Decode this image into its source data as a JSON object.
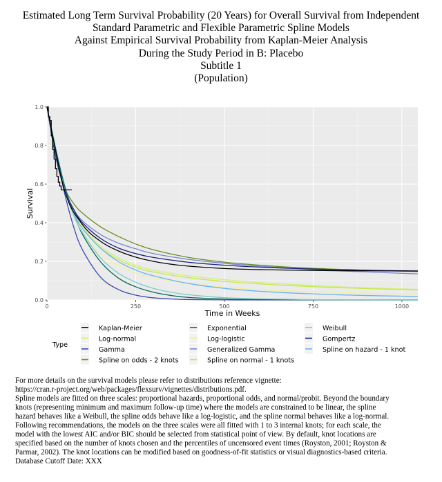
{
  "titles": [
    "Estimated Long Term Survival Probability (20 Years) for Overall Survival from Independent",
    "Standard Parametric and Flexible Parametric Spline Models",
    "Against Empirical Survival Probability from Kaplan-Meier Analysis",
    "During the Study Period in B: Placebo",
    "Subtitle 1",
    "(Population)"
  ],
  "footnotes": [
    "For more details on the survival models please refer to distributions reference vignette:",
    "https://cran.r-project.org/web/packages/flexsurv/vignettes/distributions.pdf.",
    "Spline models are fitted on three scales: proportional hazards, proportional odds, and normal/probit. Beyond the boundary",
    "knots (representing minimum and maximum follow-up time) where the models are constrained to be linear, the spline",
    "hazard behaves like a Weibull, the spline odds behave like a log-logistic, and the spline normal behaves like a log-normal.",
    "Following recommendations, the models on the three scales were all fitted with 1 to 3 internal knots; for each scale, the",
    "model with the lowest AIC and/or BIC should be selected from statistical point of view. By default, knot locations are",
    "specified based on the number of knots chosen and the percentiles of uncensored event times (Royston, 2001; Royston &",
    "Parmar, 2002). The knot locations can be modified based on goodness-of-fit statistics or visual diagnostics-based criteria.",
    "Database Cutoff Date: XXX"
  ],
  "chart_data": {
    "type": "line",
    "xlabel": "Time in Weeks",
    "ylabel": "Survival",
    "xlim": [
      0,
      1045
    ],
    "ylim": [
      0,
      1.0
    ],
    "xticks": [
      0,
      250,
      500,
      750,
      1000
    ],
    "xtick_labels": [
      "0",
      "250",
      "500",
      "750",
      "1000"
    ],
    "yticks": [
      0.0,
      0.2,
      0.4,
      0.6,
      0.8,
      1.0
    ],
    "ytick_labels": [
      "0.0",
      "0.2",
      "0.4",
      "0.6",
      "0.8",
      "1.0"
    ],
    "grid": true,
    "background": "#ebebeb",
    "legend_title": "Type",
    "legend_position": "bottom",
    "kaplan_meier_steps": {
      "x": [
        0,
        4,
        8,
        12,
        16,
        20,
        24,
        28,
        32,
        36,
        40,
        44,
        48,
        55,
        60,
        65,
        70
      ],
      "y": [
        1.0,
        0.95,
        0.93,
        0.85,
        0.78,
        0.73,
        0.68,
        0.64,
        0.61,
        0.59,
        0.57,
        0.57,
        0.57,
        0.57,
        0.57,
        0.57,
        0.57
      ]
    },
    "series": [
      {
        "name": "Kaplan-Meier",
        "color": "#000000",
        "x": [
          0,
          50,
          100,
          150,
          200,
          250,
          300,
          350,
          400,
          500,
          600,
          700,
          800,
          900,
          1045
        ],
        "y": [
          1.0,
          0.565,
          0.39,
          0.305,
          0.255,
          0.222,
          0.2,
          0.185,
          0.175,
          0.163,
          0.157,
          0.154,
          0.152,
          0.151,
          0.15
        ]
      },
      {
        "name": "Log-normal",
        "color": "#d2ef7a",
        "x": [
          0,
          25,
          50,
          75,
          100,
          150,
          200,
          250,
          300,
          400,
          500,
          600,
          700,
          800,
          900,
          1045
        ],
        "y": [
          1.0,
          0.76,
          0.58,
          0.46,
          0.38,
          0.28,
          0.22,
          0.18,
          0.155,
          0.125,
          0.105,
          0.09,
          0.08,
          0.07,
          0.063,
          0.055
        ]
      },
      {
        "name": "Gamma",
        "color": "#3949ab",
        "x": [
          0,
          25,
          50,
          75,
          100,
          150,
          200,
          250,
          300,
          350,
          400,
          500,
          600,
          800,
          1045
        ],
        "y": [
          1.0,
          0.76,
          0.55,
          0.38,
          0.26,
          0.12,
          0.055,
          0.025,
          0.011,
          0.005,
          0.002,
          0.0005,
          0.0001,
          0,
          0
        ]
      },
      {
        "name": "Spline on odds - 2 knots",
        "color": "#6b8e23",
        "x": [
          0,
          25,
          50,
          75,
          100,
          150,
          200,
          250,
          300,
          400,
          500,
          600,
          700,
          800,
          900,
          1045
        ],
        "y": [
          1.0,
          0.74,
          0.58,
          0.5,
          0.45,
          0.38,
          0.33,
          0.29,
          0.26,
          0.22,
          0.196,
          0.18,
          0.168,
          0.16,
          0.154,
          0.147
        ]
      },
      {
        "name": "Exponential",
        "color": "#00695c",
        "x": [
          0,
          25,
          50,
          75,
          100,
          150,
          200,
          250,
          300,
          350,
          400,
          500,
          600,
          700,
          800,
          1045
        ],
        "y": [
          1.0,
          0.78,
          0.59,
          0.45,
          0.34,
          0.2,
          0.115,
          0.068,
          0.04,
          0.023,
          0.013,
          0.005,
          0.002,
          0.001,
          0,
          0
        ]
      },
      {
        "name": "Log-logistic",
        "color": "#f3ef9c",
        "x": [
          0,
          25,
          50,
          75,
          100,
          150,
          200,
          250,
          300,
          400,
          500,
          600,
          700,
          800,
          900,
          1045
        ],
        "y": [
          1.0,
          0.76,
          0.57,
          0.44,
          0.35,
          0.24,
          0.18,
          0.14,
          0.115,
          0.085,
          0.066,
          0.054,
          0.046,
          0.04,
          0.035,
          0.03
        ]
      },
      {
        "name": "Generalized Gamma",
        "color": "#7986cb",
        "x": [
          0,
          25,
          50,
          75,
          100,
          150,
          200,
          250,
          300,
          400,
          500,
          600,
          700,
          800,
          900,
          1045
        ],
        "y": [
          1.0,
          0.74,
          0.57,
          0.47,
          0.41,
          0.34,
          0.295,
          0.265,
          0.24,
          0.21,
          0.19,
          0.175,
          0.163,
          0.153,
          0.145,
          0.135
        ]
      },
      {
        "name": "Spline on normal - 1 knots",
        "color": "#c6e84a",
        "x": [
          0,
          25,
          50,
          75,
          100,
          150,
          200,
          250,
          300,
          400,
          500,
          600,
          700,
          800,
          900,
          1045
        ],
        "y": [
          1.0,
          0.76,
          0.57,
          0.45,
          0.37,
          0.27,
          0.21,
          0.17,
          0.145,
          0.115,
          0.096,
          0.083,
          0.073,
          0.065,
          0.059,
          0.052
        ]
      },
      {
        "name": "Weibull",
        "color": "#80cbc4",
        "x": [
          0,
          25,
          50,
          75,
          100,
          150,
          200,
          250,
          300,
          350,
          400,
          500,
          600,
          700,
          800,
          1045
        ],
        "y": [
          1.0,
          0.76,
          0.57,
          0.44,
          0.35,
          0.22,
          0.14,
          0.092,
          0.06,
          0.04,
          0.027,
          0.012,
          0.006,
          0.003,
          0.001,
          0
        ]
      },
      {
        "name": "Gompertz",
        "color": "#1a237e",
        "x": [
          0,
          25,
          50,
          75,
          100,
          150,
          200,
          250,
          300,
          400,
          500,
          600,
          700,
          800,
          900,
          1045
        ],
        "y": [
          1.0,
          0.74,
          0.57,
          0.47,
          0.4,
          0.32,
          0.27,
          0.24,
          0.22,
          0.195,
          0.18,
          0.17,
          0.163,
          0.158,
          0.154,
          0.15
        ]
      },
      {
        "name": "Spline on hazard - 1 knot",
        "color": "#64b5f6",
        "x": [
          0,
          25,
          50,
          75,
          100,
          150,
          200,
          250,
          300,
          400,
          500,
          600,
          700,
          800,
          900,
          1045
        ],
        "y": [
          1.0,
          0.76,
          0.57,
          0.45,
          0.37,
          0.27,
          0.2,
          0.155,
          0.125,
          0.085,
          0.06,
          0.045,
          0.035,
          0.028,
          0.023,
          0.018
        ]
      }
    ],
    "legend_columns": [
      [
        "Kaplan-Meier",
        "Log-normal",
        "Gamma",
        "Spline on odds - 2 knots"
      ],
      [
        "Exponential",
        "Log-logistic",
        "Generalized Gamma",
        "Spline on normal - 1 knots"
      ],
      [
        "Weibull",
        "Gompertz",
        "Spline on hazard - 1 knot"
      ]
    ]
  }
}
